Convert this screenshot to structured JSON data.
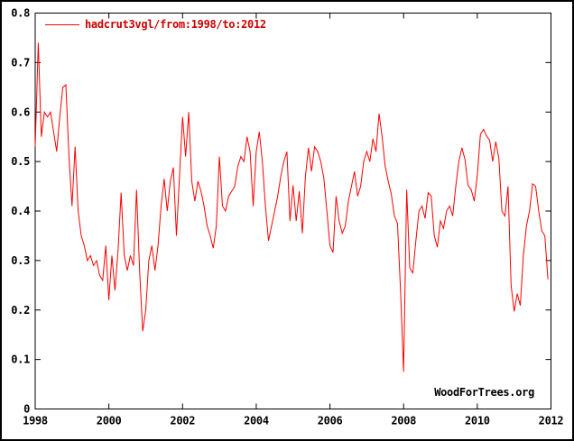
{
  "figure": {
    "legend_label": "hadcrut3vgl/from:1998/to:2012",
    "watermark": "WoodForTrees.org"
  },
  "chart_data": {
    "type": "line",
    "title": "",
    "xlabel": "",
    "ylabel": "",
    "legend": [
      "hadcrut3vgl/from:1998/to:2012"
    ],
    "legend_position": "top-left-inside",
    "watermark": "WoodForTrees.org",
    "grid": false,
    "xlim": [
      1998,
      2012
    ],
    "ylim": [
      0,
      0.8
    ],
    "x_tick_values": [
      1998,
      2000,
      2002,
      2004,
      2006,
      2008,
      2010,
      2012
    ],
    "x_tick_labels": [
      "1998",
      "2000",
      "2002",
      "2004",
      "2006",
      "2008",
      "2010",
      "2012"
    ],
    "y_tick_values": [
      0,
      0.1,
      0.2,
      0.3,
      0.4,
      0.5,
      0.6,
      0.7,
      0.8
    ],
    "y_tick_labels": [
      "0",
      "0.1",
      "0.2",
      "0.3",
      "0.4",
      "0.5",
      "0.6",
      "0.7",
      "0.8"
    ],
    "line_color": "#ff0000",
    "axis_color": "#000000",
    "background_color": "#ffffff",
    "series": [
      {
        "name": "hadcrut3vgl/from:1998/to:2012",
        "x_start": 1998.0,
        "x_step_years": 0.083333,
        "values": [
          0.53,
          0.74,
          0.55,
          0.6,
          0.59,
          0.6,
          0.56,
          0.52,
          0.59,
          0.65,
          0.655,
          0.51,
          0.41,
          0.53,
          0.4,
          0.35,
          0.33,
          0.3,
          0.31,
          0.29,
          0.3,
          0.27,
          0.26,
          0.33,
          0.22,
          0.31,
          0.24,
          0.32,
          0.437,
          0.31,
          0.28,
          0.31,
          0.29,
          0.443,
          0.28,
          0.157,
          0.2,
          0.3,
          0.33,
          0.28,
          0.33,
          0.41,
          0.465,
          0.4,
          0.46,
          0.488,
          0.35,
          0.47,
          0.59,
          0.51,
          0.6,
          0.46,
          0.42,
          0.46,
          0.44,
          0.41,
          0.37,
          0.35,
          0.325,
          0.37,
          0.51,
          0.41,
          0.4,
          0.43,
          0.44,
          0.45,
          0.49,
          0.51,
          0.5,
          0.55,
          0.52,
          0.41,
          0.52,
          0.56,
          0.5,
          0.41,
          0.34,
          0.37,
          0.4,
          0.43,
          0.47,
          0.5,
          0.52,
          0.38,
          0.452,
          0.38,
          0.44,
          0.355,
          0.47,
          0.528,
          0.48,
          0.53,
          0.52,
          0.5,
          0.467,
          0.4,
          0.33,
          0.316,
          0.43,
          0.38,
          0.355,
          0.37,
          0.42,
          0.45,
          0.48,
          0.43,
          0.45,
          0.5,
          0.52,
          0.5,
          0.546,
          0.52,
          0.597,
          0.55,
          0.49,
          0.46,
          0.434,
          0.39,
          0.375,
          0.24,
          0.075,
          0.443,
          0.285,
          0.275,
          0.34,
          0.4,
          0.41,
          0.385,
          0.437,
          0.43,
          0.35,
          0.327,
          0.38,
          0.365,
          0.4,
          0.41,
          0.39,
          0.45,
          0.5,
          0.528,
          0.504,
          0.452,
          0.443,
          0.42,
          0.473,
          0.555,
          0.565,
          0.552,
          0.543,
          0.5,
          0.54,
          0.507,
          0.4,
          0.39,
          0.45,
          0.25,
          0.197,
          0.233,
          0.209,
          0.31,
          0.37,
          0.4,
          0.455,
          0.45,
          0.4,
          0.36,
          0.35,
          0.262
        ]
      }
    ]
  }
}
